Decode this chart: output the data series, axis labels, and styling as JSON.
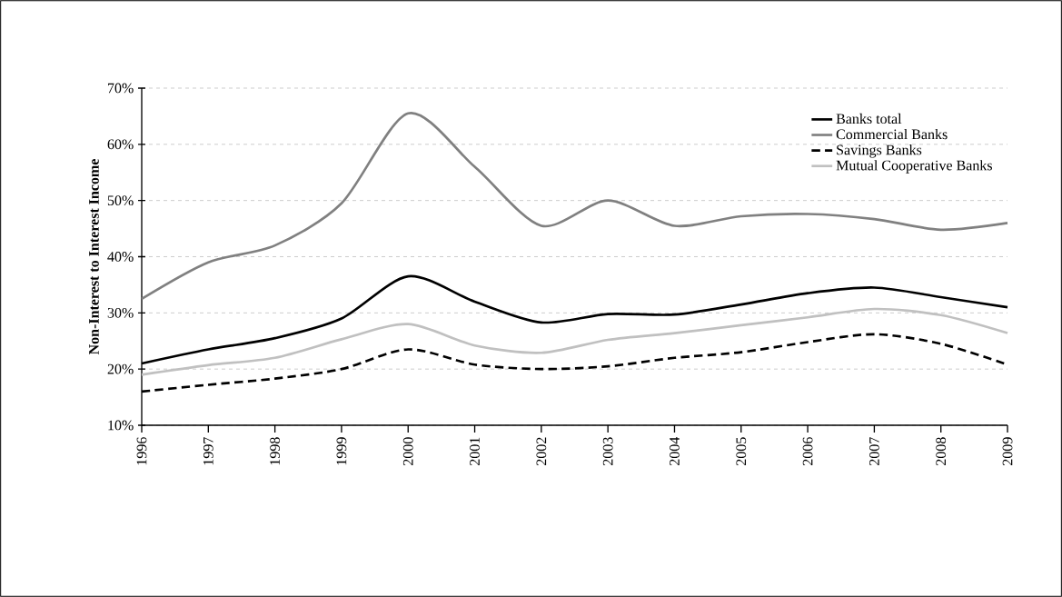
{
  "chart_data": {
    "type": "line",
    "ylabel": "Non-Interest to Interest Income",
    "categories": [
      "1996",
      "1997",
      "1998",
      "1999",
      "2000",
      "2001",
      "2002",
      "2003",
      "2004",
      "2005",
      "2006",
      "2007",
      "2008",
      "2009"
    ],
    "series": [
      {
        "name": "Banks total",
        "color": "#000000",
        "line_style": "solid",
        "values": [
          21,
          23.5,
          25.5,
          29,
          36.5,
          32,
          28.3,
          29.8,
          29.7,
          31.5,
          33.5,
          34.5,
          32.8,
          31
        ]
      },
      {
        "name": "Commercial Banks",
        "color": "#808080",
        "line_style": "solid",
        "values": [
          32.5,
          39,
          42,
          49.5,
          65.5,
          56,
          45.5,
          50,
          45.5,
          47.2,
          47.6,
          46.7,
          44.8,
          46
        ]
      },
      {
        "name": "Savings Banks",
        "color": "#000000",
        "line_style": "dashed",
        "values": [
          16,
          17.2,
          18.3,
          20,
          23.5,
          20.8,
          20,
          20.5,
          22,
          23,
          24.8,
          26.2,
          24.5,
          20.8
        ]
      },
      {
        "name": "Mutual Cooperative Banks",
        "color": "#c0c0c0",
        "line_style": "solid",
        "values": [
          19,
          20.7,
          22,
          25.3,
          28,
          24.2,
          22.9,
          25.2,
          26.4,
          27.8,
          29.2,
          30.7,
          29.6,
          26.4
        ]
      }
    ],
    "ylim": [
      10,
      70
    ],
    "yticks": [
      {
        "value": 10,
        "label": "10%"
      },
      {
        "value": 20,
        "label": "20%"
      },
      {
        "value": 30,
        "label": "30%"
      },
      {
        "value": 40,
        "label": "40%"
      },
      {
        "value": 50,
        "label": "50%"
      },
      {
        "value": 60,
        "label": "60%"
      },
      {
        "value": 70,
        "label": "70%"
      }
    ],
    "grid": "y",
    "legend": "top right",
    "marker": "none"
  }
}
